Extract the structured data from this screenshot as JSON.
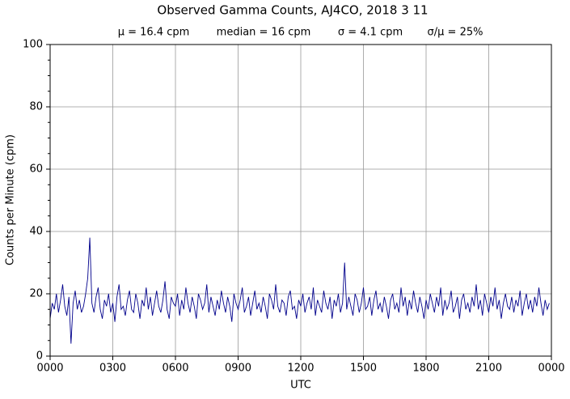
{
  "chart_data": {
    "type": "line",
    "title": "Observed Gamma Counts, AJ4CO, 2018 3 11",
    "annotations": [
      "μ = 16.4 cpm",
      "median = 16 cpm",
      "σ = 4.1 cpm",
      "σ/μ = 25%"
    ],
    "xlabel": "UTC",
    "ylabel": "Counts per Minute (cpm)",
    "xlim": [
      0,
      1440
    ],
    "ylim": [
      0,
      100
    ],
    "xticks": [
      {
        "value": 0,
        "label": "0000"
      },
      {
        "value": 180,
        "label": "0300"
      },
      {
        "value": 360,
        "label": "0600"
      },
      {
        "value": 540,
        "label": "0900"
      },
      {
        "value": 720,
        "label": "1200"
      },
      {
        "value": 900,
        "label": "1500"
      },
      {
        "value": 1080,
        "label": "1800"
      },
      {
        "value": 1260,
        "label": "2100"
      },
      {
        "value": 1440,
        "label": "0000"
      }
    ],
    "yticks": [
      0,
      20,
      40,
      60,
      80,
      100
    ],
    "yminorticks": [
      5,
      10,
      15,
      25,
      30,
      35,
      45,
      50,
      55,
      65,
      70,
      75,
      85,
      90,
      95
    ],
    "grid": true,
    "series": [
      {
        "color": "#00008b",
        "x": [
          0,
          6,
          12,
          18,
          24,
          30,
          36,
          42,
          48,
          54,
          60,
          66,
          72,
          78,
          84,
          90,
          96,
          102,
          108,
          114,
          120,
          126,
          132,
          138,
          144,
          150,
          156,
          162,
          168,
          174,
          180,
          186,
          192,
          198,
          204,
          210,
          216,
          222,
          228,
          234,
          240,
          246,
          252,
          258,
          264,
          270,
          276,
          282,
          288,
          294,
          300,
          306,
          312,
          318,
          324,
          330,
          336,
          342,
          348,
          354,
          360,
          366,
          372,
          378,
          384,
          390,
          396,
          402,
          408,
          414,
          420,
          426,
          432,
          438,
          444,
          450,
          456,
          462,
          468,
          474,
          480,
          486,
          492,
          498,
          504,
          510,
          516,
          522,
          528,
          534,
          540,
          546,
          552,
          558,
          564,
          570,
          576,
          582,
          588,
          594,
          600,
          606,
          612,
          618,
          624,
          630,
          636,
          642,
          648,
          654,
          660,
          666,
          672,
          678,
          684,
          690,
          696,
          702,
          708,
          714,
          720,
          726,
          732,
          738,
          744,
          750,
          756,
          762,
          768,
          774,
          780,
          786,
          792,
          798,
          804,
          810,
          816,
          822,
          828,
          834,
          840,
          846,
          852,
          858,
          864,
          870,
          876,
          882,
          888,
          894,
          900,
          906,
          912,
          918,
          924,
          930,
          936,
          942,
          948,
          954,
          960,
          966,
          972,
          978,
          984,
          990,
          996,
          1002,
          1008,
          1014,
          1020,
          1026,
          1032,
          1038,
          1044,
          1050,
          1056,
          1062,
          1068,
          1074,
          1080,
          1086,
          1092,
          1098,
          1104,
          1110,
          1116,
          1122,
          1128,
          1134,
          1140,
          1146,
          1152,
          1158,
          1164,
          1170,
          1176,
          1182,
          1188,
          1194,
          1200,
          1206,
          1212,
          1218,
          1224,
          1230,
          1236,
          1242,
          1248,
          1254,
          1260,
          1266,
          1272,
          1278,
          1284,
          1290,
          1296,
          1302,
          1308,
          1314,
          1320,
          1326,
          1332,
          1338,
          1344,
          1350,
          1356,
          1362,
          1368,
          1374,
          1380,
          1386,
          1392,
          1398,
          1404,
          1410,
          1416,
          1422,
          1428,
          1434
        ],
        "values": [
          12,
          17,
          15,
          20,
          14,
          18,
          23,
          16,
          13,
          19,
          4,
          17,
          21,
          15,
          18,
          14,
          16,
          20,
          25,
          38,
          17,
          14,
          19,
          22,
          15,
          12,
          18,
          16,
          20,
          14,
          17,
          11,
          19,
          23,
          15,
          16,
          13,
          18,
          21,
          15,
          14,
          20,
          17,
          12,
          18,
          16,
          22,
          15,
          19,
          13,
          17,
          21,
          16,
          14,
          18,
          24,
          15,
          12,
          19,
          17,
          16,
          20,
          13,
          18,
          15,
          22,
          17,
          14,
          19,
          16,
          12,
          20,
          18,
          15,
          17,
          23,
          14,
          19,
          16,
          13,
          18,
          15,
          21,
          17,
          14,
          19,
          16,
          11,
          20,
          17,
          15,
          18,
          22,
          14,
          16,
          19,
          13,
          17,
          21,
          15,
          17,
          14,
          19,
          16,
          12,
          20,
          18,
          15,
          23,
          16,
          14,
          18,
          17,
          13,
          19,
          21,
          15,
          16,
          12,
          18,
          16,
          20,
          14,
          17,
          19,
          15,
          22,
          13,
          18,
          16,
          14,
          21,
          17,
          15,
          19,
          12,
          18,
          16,
          20,
          14,
          17,
          30,
          15,
          19,
          16,
          13,
          20,
          18,
          14,
          17,
          22,
          15,
          16,
          19,
          13,
          18,
          21,
          15,
          17,
          14,
          19,
          16,
          12,
          18,
          20,
          15,
          17,
          14,
          22,
          16,
          19,
          13,
          18,
          15,
          21,
          17,
          14,
          19,
          16,
          12,
          18,
          15,
          20,
          17,
          14,
          19,
          16,
          22,
          13,
          18,
          15,
          17,
          21,
          14,
          16,
          19,
          12,
          18,
          20,
          15,
          17,
          14,
          19,
          16,
          23,
          15,
          18,
          13,
          20,
          17,
          14,
          19,
          16,
          22,
          15,
          18,
          12,
          17,
          20,
          16,
          15,
          19,
          14,
          18,
          16,
          21,
          13,
          17,
          20,
          15,
          18,
          14,
          19,
          16,
          22,
          17,
          13,
          18,
          15,
          17
        ]
      }
    ]
  }
}
